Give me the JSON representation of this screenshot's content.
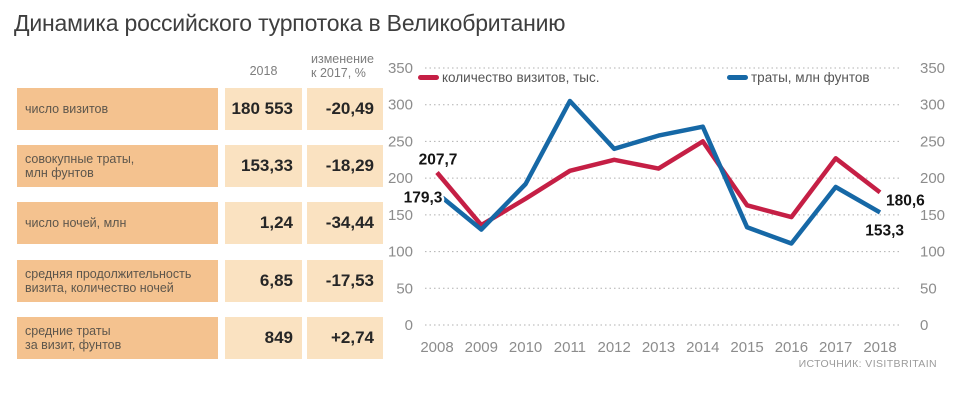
{
  "title": "Динамика российского турпотока в Великобританию",
  "table": {
    "header": {
      "year": "2018",
      "change": "изменение\nк 2017, %"
    },
    "rows": [
      {
        "label": "число визитов",
        "value": "180 553",
        "change": "-20,49"
      },
      {
        "label": "совокупные траты,\nмлн фунтов",
        "value": "153,33",
        "change": "-18,29"
      },
      {
        "label": "число ночей, млн",
        "value": "1,24",
        "change": "-34,44"
      },
      {
        "label": "средняя продолжительность\nвизита, количество ночей",
        "value": "6,85",
        "change": "-17,53"
      },
      {
        "label": "средние траты\nза визит, фунтов",
        "value": "849",
        "change": "+2,74"
      }
    ]
  },
  "chart_data": {
    "type": "line",
    "x": [
      2008,
      2009,
      2010,
      2011,
      2012,
      2013,
      2014,
      2015,
      2016,
      2017,
      2018
    ],
    "series": [
      {
        "name": "количество визитов, тыс.",
        "color": "#c51f45",
        "values": [
          207.7,
          136,
          172,
          210,
          225,
          213,
          250,
          163,
          147,
          227,
          180.6
        ]
      },
      {
        "name": "траты, млн фунтов",
        "color": "#1668a6",
        "values": [
          179.3,
          130,
          192,
          305,
          240,
          258,
          270,
          133,
          111,
          188,
          153.3
        ]
      }
    ],
    "ylim": [
      0,
      350
    ],
    "ytick_step": 50,
    "grid": "horizontal-dotted",
    "legend_position": "top",
    "y_axis_sides": "both",
    "annotations": [
      {
        "series": 0,
        "point": 0,
        "text": "207,7"
      },
      {
        "series": 1,
        "point": 0,
        "text": "179,3"
      },
      {
        "series": 0,
        "point": 10,
        "text": "180,6"
      },
      {
        "series": 1,
        "point": 10,
        "text": "153,3"
      }
    ]
  },
  "source": "ИСТОЧНИК: VISITBRITAIN",
  "colors": {
    "visits_line": "#c51f45",
    "spend_line": "#1668a6",
    "label_cell_bg": "#f4c28f",
    "value_cell_bg": "#fae2c1",
    "gridline": "#b0b0b0",
    "axis_text": "#8c8c8c"
  }
}
